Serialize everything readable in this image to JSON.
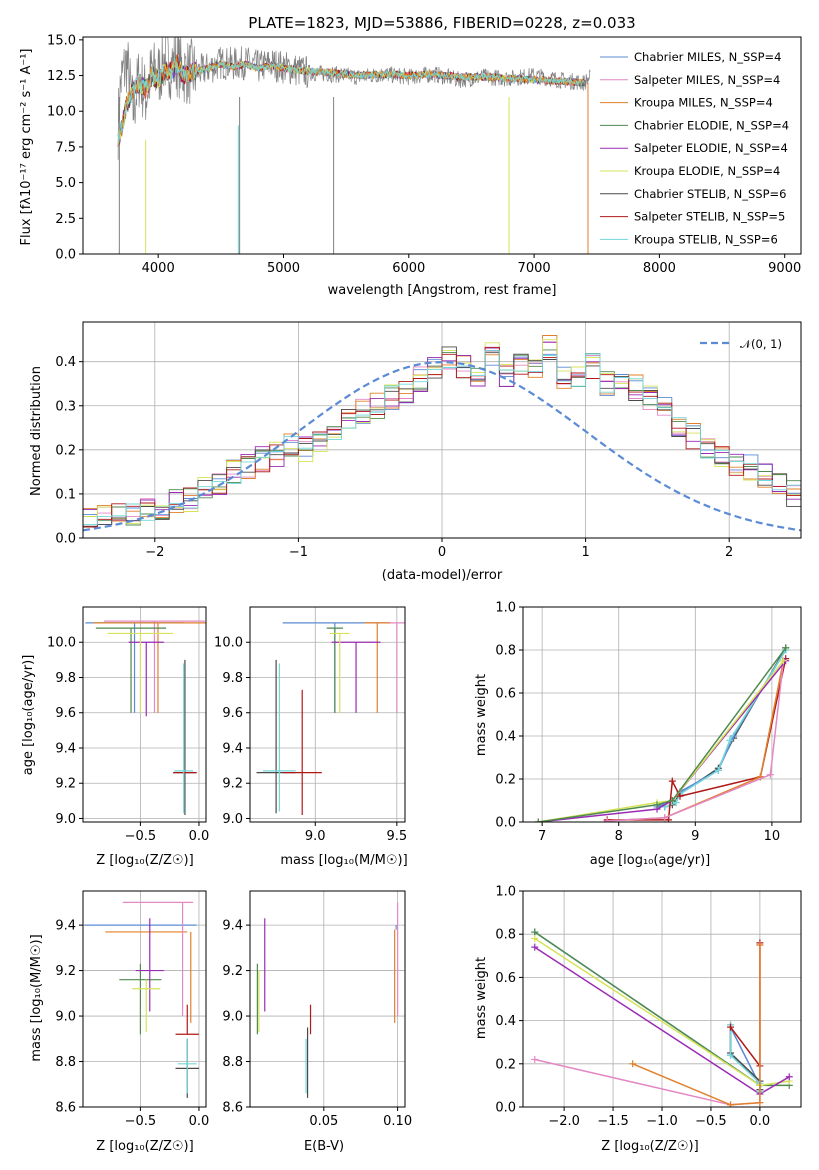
{
  "colors": {
    "chabrier_miles": "#5b8bd4",
    "salpeter_miles": "#e388c4",
    "kroupa_miles": "#e0802a",
    "chabrier_elodie": "#4f8a4f",
    "salpeter_elodie": "#9a2bb5",
    "kroupa_elodie": "#d6e35a",
    "chabrier_stelib": "#4a4a4a",
    "salpeter_stelib": "#b01818",
    "kroupa_stelib": "#72d6da",
    "data_gray": "#808080",
    "gaussian": "#5b8bd4"
  },
  "chart_data": [
    {
      "id": "spectrum",
      "type": "line",
      "title": "PLATE=1823, MJD=53886, FIBERID=0228, z=0.033",
      "xlabel": "wavelength [Angstrom, rest frame]",
      "ylabel": "Flux [fλ10⁻¹⁷ erg cm⁻² s⁻¹ A⁻¹]",
      "xlim": [
        3400,
        9130
      ],
      "ylim": [
        0,
        15.2
      ],
      "xticks": [
        4000,
        5000,
        6000,
        7000,
        8000,
        9000
      ],
      "yticks": [
        0.0,
        2.5,
        5.0,
        7.5,
        10.0,
        12.5,
        15.0
      ],
      "grid": false,
      "legend_position": "top-right",
      "legend": [
        "Chabrier MILES, N_SSP=4",
        "Salpeter MILES, N_SSP=4",
        "Kroupa MILES, N_SSP=4",
        "Chabrier ELODIE, N_SSP=4",
        "Salpeter ELODIE, N_SSP=4",
        "Kroupa ELODIE, N_SSP=4",
        "Chabrier STELIB, N_SSP=6",
        "Salpeter STELIB, N_SSP=5",
        "Kroupa STELIB, N_SSP=6"
      ],
      "data_series": {
        "name": "data",
        "x": [
          3680,
          3700,
          3750,
          3800,
          3850,
          3900,
          3950,
          4000,
          4050,
          4100,
          4150,
          4200,
          4300,
          4400,
          4500,
          4600,
          4700,
          4800,
          4900,
          5000,
          5200,
          5400,
          5600,
          5800,
          6000,
          6200,
          6400,
          6600,
          6800,
          7000,
          7200,
          7400,
          7450
        ],
        "y": [
          9.0,
          12.0,
          13.5,
          10.0,
          12.5,
          11.0,
          12.8,
          12.5,
          13.6,
          13.2,
          13.4,
          12.8,
          12.7,
          13.0,
          13.4,
          13.3,
          13.4,
          13.1,
          13.3,
          13.1,
          12.7,
          12.6,
          12.4,
          12.6,
          12.4,
          12.6,
          12.2,
          12.4,
          12.3,
          12.5,
          12.2,
          12.0,
          12.4
        ]
      },
      "model_series": {
        "x": [
          3680,
          3700,
          3750,
          3800,
          3850,
          3900,
          3950,
          4000,
          4050,
          4100,
          4150,
          4200,
          4300,
          4400,
          4500,
          4600,
          4700,
          4800,
          4900,
          5000,
          5200,
          5400,
          5600,
          5800,
          6000,
          6200,
          6400,
          6600,
          6800,
          7000,
          7200,
          7400
        ],
        "y": [
          8.0,
          8.5,
          10.5,
          11.5,
          12.0,
          11.5,
          12.5,
          12.2,
          12.8,
          12.8,
          13.3,
          12.5,
          12.8,
          13.0,
          13.3,
          13.1,
          13.3,
          13.0,
          13.2,
          13.0,
          12.8,
          12.7,
          12.5,
          12.6,
          12.5,
          12.6,
          12.4,
          12.4,
          12.3,
          12.2,
          12.1,
          12.0
        ]
      }
    },
    {
      "id": "residuals",
      "type": "line",
      "xlabel": "(data-model)/error",
      "ylabel": "Normed distribution",
      "xlim": [
        -2.5,
        2.5
      ],
      "ylim": [
        0,
        0.49
      ],
      "xticks": [
        -2,
        -1,
        0,
        1,
        2
      ],
      "yticks": [
        0.0,
        0.1,
        0.2,
        0.3,
        0.4
      ],
      "grid": true,
      "legend_position": "top-right",
      "legend": [
        "𝒩(0, 1)"
      ],
      "bin_width": 0.1,
      "hist_heights": [
        0.02,
        0.02,
        0.025,
        0.03,
        0.035,
        0.04,
        0.05,
        0.06,
        0.055,
        0.065,
        0.07,
        0.08,
        0.09,
        0.11,
        0.12,
        0.15,
        0.16,
        0.18,
        0.19,
        0.21,
        0.2,
        0.22,
        0.25,
        0.27,
        0.29,
        0.3,
        0.32,
        0.33,
        0.36,
        0.38,
        0.41,
        0.39,
        0.36,
        0.42,
        0.37,
        0.4,
        0.38,
        0.43,
        0.36,
        0.37,
        0.39,
        0.35,
        0.36,
        0.34,
        0.32,
        0.3,
        0.26,
        0.23,
        0.21,
        0.19,
        0.17,
        0.16,
        0.14,
        0.12,
        0.1,
        0.09,
        0.08,
        0.06,
        0.07,
        0.06,
        0.05,
        0.04,
        0.045,
        0.04,
        0.035,
        0.03,
        0.025,
        0.03,
        0.02,
        0.02
      ],
      "hist_start": -3.0
    },
    {
      "id": "age_vs_Z",
      "type": "scatter",
      "xlabel": "Z [log₁₀(Z/Z☉)]",
      "ylabel": "age  [log₁₀(age/yr)]",
      "xlim": [
        -0.99,
        0.06
      ],
      "ylim": [
        8.98,
        10.2
      ],
      "xticks": [
        -0.5,
        0.0
      ],
      "yticks": [
        9.0,
        9.2,
        9.4,
        9.6,
        9.8,
        10.0
      ],
      "grid": true,
      "points": [
        {
          "series": 0,
          "x": -0.55,
          "y": 10.11,
          "xerr": 0.4,
          "yerr": 0.0
        },
        {
          "series": 1,
          "x": -0.4,
          "y": 10.12,
          "xerr": 0.4,
          "yerr": 0.0
        },
        {
          "series": 2,
          "x": -0.35,
          "y": 10.11,
          "xerr": 0.55,
          "yerr": 0.0
        },
        {
          "series": 3,
          "x": -0.58,
          "y": 10.08,
          "xerr": 0.3,
          "yerr": 0.0
        },
        {
          "series": 4,
          "x": -0.45,
          "y": 10.0,
          "xerr": 0.15,
          "yerr": 0.0
        },
        {
          "series": 5,
          "x": -0.5,
          "y": 10.05,
          "xerr": 0.3,
          "yerr": 0.0
        },
        {
          "series": 6,
          "x": -0.12,
          "y": 9.26,
          "xerr": 0.1,
          "yerr": 0.0
        },
        {
          "series": 7,
          "x": -0.12,
          "y": 9.26,
          "xerr": 0.08,
          "yerr": 0.0
        },
        {
          "series": 8,
          "x": -0.12,
          "y": 9.27,
          "xerr": 0.08,
          "yerr": 0.0
        }
      ]
    },
    {
      "id": "age_vs_mass",
      "type": "scatter",
      "xlabel": "mass [log₁₀(M/M☉)]",
      "ylabel": "",
      "xlim": [
        8.6,
        9.55
      ],
      "ylim": [
        8.98,
        10.2
      ],
      "xticks": [
        9.0,
        9.5
      ],
      "yticks": [
        9.0,
        9.2,
        9.4,
        9.6,
        9.8,
        10.0
      ],
      "grid": true,
      "points": [
        {
          "series": 0,
          "x": 9.4,
          "y": 10.11,
          "xerr": 0.0,
          "yerr": 0.0
        },
        {
          "series": 1,
          "x": 9.45,
          "y": 10.11,
          "xerr": 0.1,
          "yerr": 0.0
        },
        {
          "series": 2,
          "x": 9.35,
          "y": 10.11,
          "xerr": 0.05,
          "yerr": 0.0
        },
        {
          "series": 3,
          "x": 9.15,
          "y": 10.08,
          "xerr": 0.05,
          "yerr": 0.0
        },
        {
          "series": 4,
          "x": 9.2,
          "y": 10.0,
          "xerr": 0.0,
          "yerr": 0.0
        },
        {
          "series": 5,
          "x": 9.15,
          "y": 10.08,
          "xerr": 0.05,
          "yerr": 0.0
        },
        {
          "series": 6,
          "x": 8.78,
          "y": 9.27,
          "xerr": 0.1,
          "yerr": 0.0
        },
        {
          "series": 7,
          "x": 8.92,
          "y": 9.26,
          "xerr": 0.1,
          "yerr": 0.0
        },
        {
          "series": 8,
          "x": 8.79,
          "y": 9.27,
          "xerr": 0.08,
          "yerr": 0.0
        }
      ]
    },
    {
      "id": "weight_vs_age",
      "type": "line",
      "xlabel": "age  [log₁₀(age/yr)]",
      "ylabel": "mass weight",
      "xlim": [
        6.75,
        10.38
      ],
      "ylim": [
        0.0,
        1.0
      ],
      "xticks": [
        7,
        8,
        9,
        10
      ],
      "yticks": [
        0.0,
        0.2,
        0.4,
        0.6,
        0.8,
        1.0
      ],
      "grid": true
    },
    {
      "id": "mass_vs_Z",
      "type": "scatter",
      "xlabel": "Z [log₁₀(Z/Z☉)]",
      "ylabel": "mass [log₁₀(M/M☉)]",
      "xlim": [
        -0.99,
        0.06
      ],
      "ylim": [
        8.6,
        9.55
      ],
      "xticks": [
        -0.5,
        0.0
      ],
      "yticks": [
        8.6,
        8.8,
        9.0,
        9.2,
        9.4
      ],
      "grid": true
    },
    {
      "id": "mass_vs_EBV",
      "type": "scatter",
      "xlabel": "E(B-V)",
      "ylabel": "",
      "xlim": [
        -0.0,
        0.105
      ],
      "ylim": [
        8.6,
        9.55
      ],
      "xticks": [
        0.05,
        0.1
      ],
      "yticks": [
        8.6,
        8.8,
        9.0,
        9.2,
        9.4
      ],
      "grid": true
    },
    {
      "id": "weight_vs_Z",
      "type": "line",
      "xlabel": "Z [log₁₀(Z/Z☉)]",
      "ylabel": "mass weight",
      "xlim": [
        -2.42,
        0.42
      ],
      "ylim": [
        0.0,
        1.0
      ],
      "xticks": [
        -2.0,
        -1.5,
        -1.0,
        -0.5,
        0.0
      ],
      "yticks": [
        0.0,
        0.2,
        0.4,
        0.6,
        0.8,
        1.0
      ],
      "grid": true
    }
  ]
}
